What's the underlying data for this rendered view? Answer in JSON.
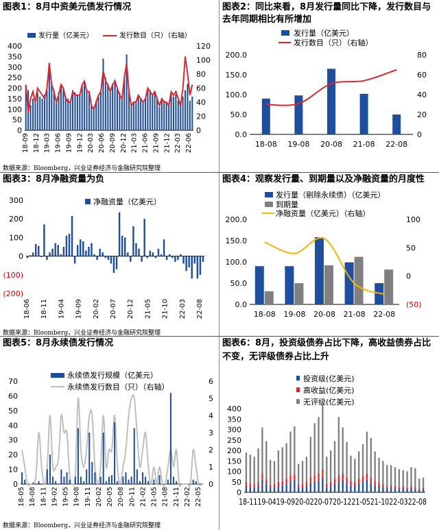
{
  "source_text": "数据来源：Bloomberg，兴业证券经济与金融研究院整理",
  "colors": {
    "bar": "#1f4e9c",
    "line_red": "#e0262d",
    "line_yellow": "#f5b400",
    "bar_gray": "#808080",
    "line_gray": "#bfbfbf",
    "neg_label": "#d40000"
  },
  "panel1": {
    "title": "图表1：8月中资美元债发行情况",
    "chart_data": {
      "type": "bar",
      "legend": [
        "发行量（亿美元）",
        "发行数目（只）（右轴）"
      ],
      "ylim": [
        0,
        400
      ],
      "y2lim": [
        0,
        120
      ],
      "yticks": [
        "0",
        "50",
        "100",
        "150",
        "200",
        "250",
        "300",
        "350",
        "400"
      ],
      "y2ticks": [
        "0",
        "20",
        "40",
        "60",
        "80",
        "100",
        "120"
      ],
      "xticks": [
        "18-09",
        "18-12",
        "19-03",
        "19-06",
        "19-09",
        "19-12",
        "20-03",
        "20-06",
        "20-09",
        "20-12",
        "21-03",
        "21-06",
        "21-09",
        "21-12",
        "22-03",
        "22-06"
      ],
      "bars": [
        210,
        190,
        120,
        150,
        140,
        180,
        160,
        150,
        170,
        190,
        320,
        230,
        190,
        130,
        180,
        220,
        200,
        160,
        150,
        140,
        190,
        180,
        170,
        170,
        210,
        230,
        190,
        180,
        120,
        110,
        140,
        160,
        190,
        340,
        250,
        220,
        180,
        220,
        240,
        200,
        180,
        150,
        250,
        360,
        190,
        120,
        130,
        130,
        160,
        150,
        140,
        150,
        200,
        190,
        170,
        180,
        150,
        110,
        150,
        140,
        130,
        120,
        180,
        160,
        170,
        140,
        120,
        160,
        190,
        220,
        140,
        160
      ],
      "line": [
        65,
        25,
        45,
        55,
        40,
        60,
        55,
        50,
        45,
        60,
        95,
        65,
        55,
        40,
        50,
        65,
        60,
        45,
        40,
        40,
        55,
        50,
        50,
        50,
        65,
        70,
        55,
        55,
        35,
        30,
        40,
        50,
        55,
        85,
        70,
        65,
        55,
        65,
        70,
        60,
        50,
        45,
        75,
        95,
        55,
        35,
        40,
        40,
        50,
        45,
        40,
        45,
        60,
        55,
        50,
        55,
        45,
        35,
        45,
        40,
        40,
        35,
        55,
        50,
        55,
        45,
        35,
        60,
        105,
        80,
        50,
        65
      ]
    }
  },
  "panel2": {
    "title_line1": "图表2：同比来看，8月发行量同比下降，发行数目与",
    "title_line2": "去年同期相比有所增加",
    "chart_data": {
      "type": "bar",
      "legend": [
        "发行量（亿美元）",
        "发行数目（只）（右轴）"
      ],
      "categories": [
        "18-08",
        "19-08",
        "20-08",
        "21-08",
        "22-08"
      ],
      "values": [
        90,
        98,
        165,
        102,
        50
      ],
      "line": [
        30,
        31,
        51,
        54,
        65
      ],
      "ylim": [
        0,
        200
      ],
      "y2lim": [
        0,
        80
      ],
      "yticks": [
        "0.0",
        "50.0",
        "100.0",
        "150.0",
        "200.0"
      ],
      "y2ticks": [
        "0",
        "20",
        "40",
        "60",
        "80"
      ]
    }
  },
  "panel3": {
    "title": "图表3：8月净融资量为负",
    "chart_data": {
      "type": "bar",
      "legend": [
        "净融资量（亿美元）"
      ],
      "ylim": [
        -200,
        300
      ],
      "yticks": [
        "(200)",
        "(100)",
        "0",
        "100",
        "200",
        "300"
      ],
      "xticks": [
        "18-06",
        "18-11",
        "19-04",
        "19-09",
        "20-02",
        "20-07",
        "20-12",
        "21-05",
        "21-10",
        "22-03",
        "22-08"
      ],
      "values": [
        -10,
        5,
        20,
        65,
        55,
        -5,
        170,
        -20,
        20,
        40,
        70,
        60,
        10,
        50,
        110,
        120,
        215,
        -40,
        60,
        90,
        80,
        30,
        50,
        70,
        10,
        -20,
        40,
        20,
        -10,
        -20,
        -40,
        -90,
        -70,
        235,
        110,
        100,
        20,
        -30,
        160,
        70,
        40,
        -30,
        200,
        -10,
        30,
        20,
        -10,
        40,
        10,
        90,
        -20,
        10,
        -10,
        -30,
        -20,
        10,
        -40,
        -80,
        -60,
        -120,
        -40,
        -120,
        -100,
        -30
      ]
    }
  },
  "panel4": {
    "title": "图表4：观察发行量、到期量以及净融资量的月度性",
    "chart_data": {
      "type": "bar",
      "legend": [
        "发行量（剔除永续债）（亿美元）",
        "到期量",
        "净融资量（亿美元）（右轴）"
      ],
      "categories": [
        "18-08",
        "19-08",
        "20-08",
        "21-08",
        "22-08"
      ],
      "series": [
        {
          "name": "发行量（剔除永续债）（亿美元）",
          "values": [
            90,
            90,
            158,
            99,
            50
          ]
        },
        {
          "name": "到期量",
          "values": [
            31,
            50,
            92,
            112,
            82
          ]
        }
      ],
      "line": [
        60,
        40,
        66,
        -13,
        -32
      ],
      "ylim": [
        0,
        200
      ],
      "y2lim": [
        -50,
        100
      ],
      "yticks": [
        "0.0",
        "50.0",
        "100.0",
        "150.0",
        "200.0"
      ],
      "y2ticks": [
        "(50)",
        "0",
        "50",
        "100"
      ]
    }
  },
  "panel5": {
    "title": "图表5：8月永续债发行情况",
    "chart_data": {
      "type": "bar",
      "legend": [
        "永续债发行规模（亿美元）",
        "永续债发行数目（只）（右轴）"
      ],
      "ylim": [
        0,
        70
      ],
      "y2lim": [
        0,
        6
      ],
      "yticks": [
        "0",
        "10",
        "20",
        "30",
        "40",
        "50",
        "60",
        "70"
      ],
      "y2ticks": [
        "0",
        "1",
        "2",
        "3",
        "4",
        "5",
        "6"
      ],
      "xticks": [
        "18-05",
        "18-08",
        "18-11",
        "19-02",
        "19-05",
        "19-08",
        "19-11",
        "20-02",
        "20-05",
        "20-08",
        "20-11",
        "21-02",
        "21-05",
        "21-08",
        "21-11",
        "22-02",
        "22-05"
      ],
      "bars": [
        8,
        3,
        0,
        0,
        1,
        0,
        2,
        0,
        0,
        10,
        20,
        5,
        2,
        0,
        10,
        5,
        8,
        3,
        0,
        5,
        38,
        5,
        2,
        10,
        35,
        15,
        8,
        0,
        5,
        35,
        2,
        5,
        6,
        42,
        2,
        0,
        5,
        8,
        3,
        5,
        38,
        10,
        2,
        8,
        5,
        2,
        0,
        3,
        0,
        6,
        0,
        0,
        3,
        62,
        5,
        2,
        0,
        0,
        0,
        0,
        0,
        3,
        2,
        0,
        0
      ],
      "line": [
        2,
        1,
        0,
        0,
        0,
        0.5,
        3,
        1,
        0,
        1,
        4,
        1,
        1,
        1.5,
        4,
        3,
        3,
        0.5,
        0,
        0.5,
        5,
        2,
        1,
        2,
        4,
        4,
        1,
        0,
        1,
        4,
        1,
        2,
        2,
        4,
        1,
        0,
        1,
        2,
        4,
        5,
        5,
        3,
        1,
        2,
        3,
        1,
        0,
        1,
        0,
        1,
        0,
        0,
        1,
        2,
        1,
        2,
        0,
        0,
        0,
        0,
        0,
        2,
        1,
        0,
        0
      ]
    }
  },
  "panel6": {
    "title_line1": "图表6：8月，投资级债券占比下降，高收益债券占比",
    "title_line2": "不变，无评级债券占比上升",
    "chart_data": {
      "type": "bar",
      "legend": [
        "投资级(亿美元)",
        "高收益(亿美元)",
        "无评级(亿美元)"
      ],
      "ylim": [
        0,
        400
      ],
      "yticks": [
        "0",
        "50",
        "100",
        "150",
        "200",
        "250",
        "300",
        "350",
        "400"
      ],
      "xticks_text": "18-1119-0419-0920-0220-0720-1221-0521-1022-0322-08",
      "stacks": [
        [
          30,
          20,
          140
        ],
        [
          20,
          20,
          140
        ],
        [
          25,
          15,
          130
        ],
        [
          30,
          20,
          160
        ],
        [
          60,
          30,
          220
        ],
        [
          40,
          25,
          180
        ],
        [
          20,
          15,
          120
        ],
        [
          25,
          15,
          110
        ],
        [
          30,
          20,
          150
        ],
        [
          35,
          20,
          160
        ],
        [
          40,
          25,
          170
        ],
        [
          50,
          30,
          210
        ],
        [
          60,
          25,
          230
        ],
        [
          20,
          15,
          100
        ],
        [
          25,
          15,
          110
        ],
        [
          30,
          20,
          120
        ],
        [
          45,
          30,
          190
        ],
        [
          50,
          30,
          250
        ],
        [
          55,
          35,
          270
        ],
        [
          70,
          40,
          310
        ],
        [
          25,
          15,
          130
        ],
        [
          30,
          20,
          150
        ],
        [
          40,
          25,
          180
        ],
        [
          50,
          30,
          280
        ],
        [
          60,
          30,
          220
        ],
        [
          45,
          25,
          170
        ],
        [
          35,
          20,
          120
        ],
        [
          30,
          20,
          110
        ],
        [
          40,
          25,
          130
        ],
        [
          50,
          30,
          150
        ],
        [
          60,
          30,
          200
        ],
        [
          45,
          25,
          190
        ],
        [
          35,
          20,
          140
        ],
        [
          30,
          15,
          120
        ],
        [
          25,
          15,
          110
        ],
        [
          20,
          10,
          100
        ],
        [
          25,
          10,
          95
        ],
        [
          20,
          10,
          90
        ],
        [
          15,
          10,
          85
        ],
        [
          20,
          10,
          75
        ],
        [
          15,
          5,
          80
        ],
        [
          20,
          10,
          90
        ],
        [
          15,
          10,
          90
        ],
        [
          10,
          5,
          50
        ],
        [
          15,
          5,
          50
        ]
      ]
    }
  }
}
